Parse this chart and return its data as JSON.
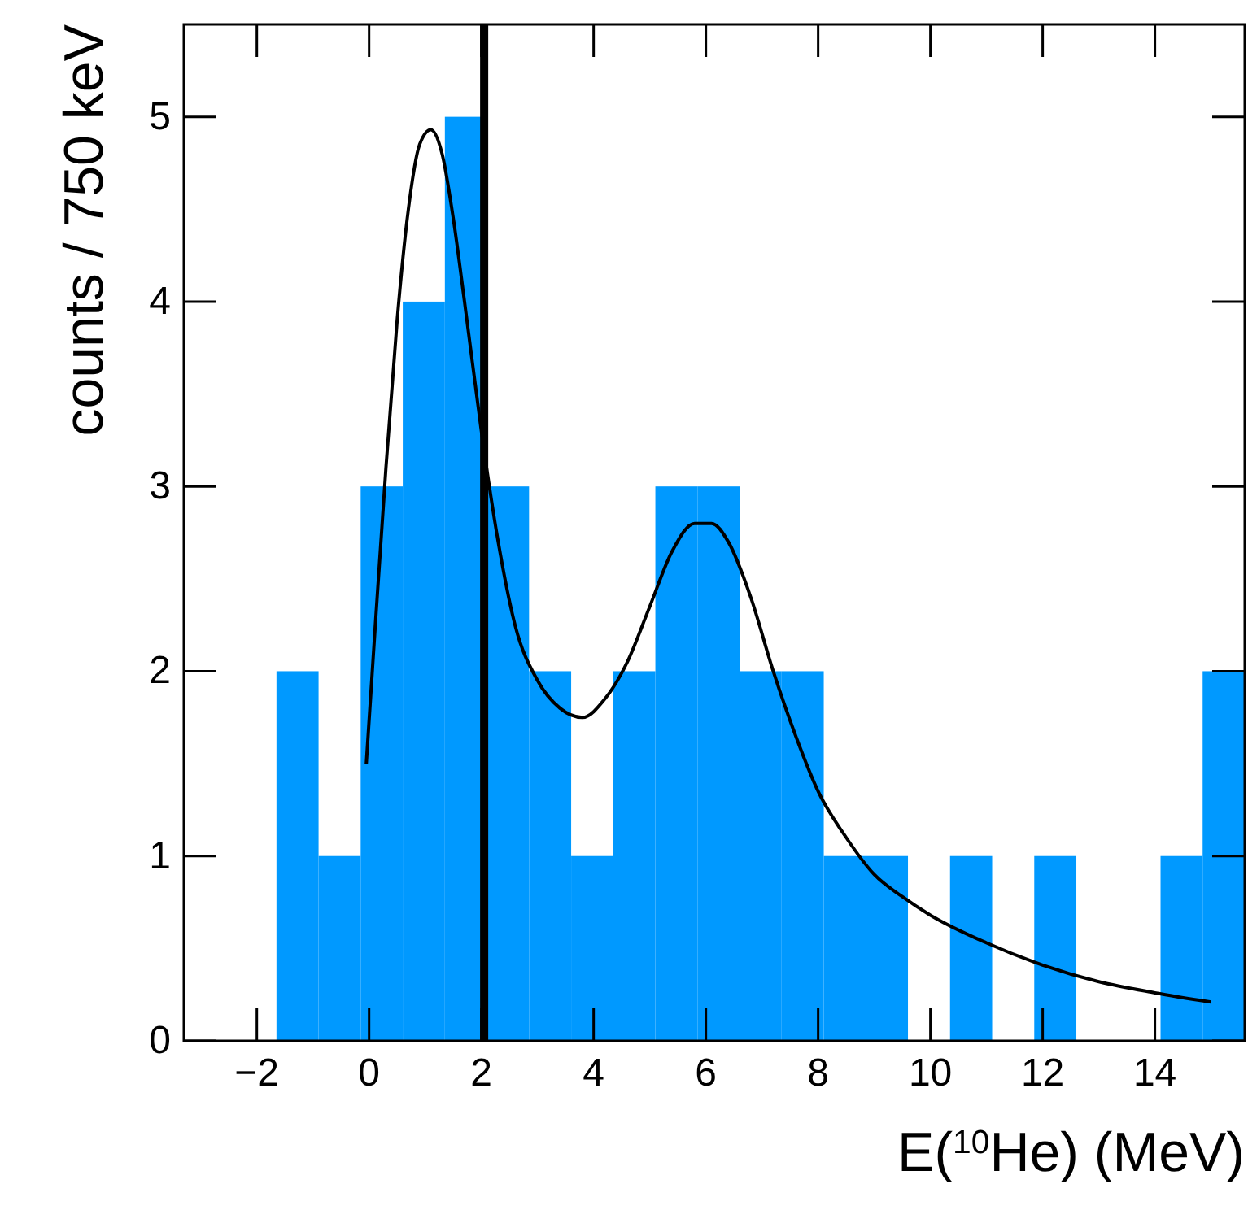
{
  "chart_data": {
    "type": "histogram",
    "xlabel": "E($^{10}$He) (MeV)",
    "ylabel": "counts / 750 keV",
    "bins": [
      -1.65,
      -0.9,
      -0.15,
      0.6,
      1.35,
      2.1,
      2.85,
      3.6,
      4.35,
      5.1,
      5.85,
      6.6,
      7.35,
      8.1,
      8.85,
      9.6,
      10.35,
      11.1,
      11.85,
      12.6,
      13.35,
      14.1,
      14.85,
      15.6
    ],
    "values": [
      2,
      1,
      3,
      4,
      5,
      3,
      2,
      1,
      2,
      3,
      3,
      2,
      2,
      1,
      1,
      0,
      1,
      0,
      1,
      0,
      0,
      1,
      2
    ],
    "color": "#0099ff",
    "series": [
      {
        "type": "line",
        "color": "#000000",
        "x": [
          -0.05,
          0.1,
          0.3,
          0.5,
          0.7,
          0.9,
          1.1,
          1.3,
          1.5,
          1.7,
          2.0,
          2.3,
          2.6,
          3.0,
          3.4,
          3.8,
          4.2,
          4.6,
          5.0,
          5.4,
          5.8,
          6.1,
          6.4,
          6.8,
          7.2,
          7.6,
          8.0,
          8.5,
          9.0,
          9.5,
          10,
          11,
          12,
          13,
          14,
          15
        ],
        "values": [
          1.5,
          2.2,
          3.1,
          3.9,
          4.5,
          4.85,
          4.93,
          4.8,
          4.45,
          4.0,
          3.3,
          2.7,
          2.25,
          1.95,
          1.8,
          1.75,
          1.85,
          2.05,
          2.35,
          2.65,
          2.8,
          2.8,
          2.7,
          2.4,
          2.0,
          1.65,
          1.35,
          1.1,
          0.9,
          0.78,
          0.68,
          0.53,
          0.41,
          0.32,
          0.26,
          0.21
        ]
      }
    ],
    "ref_lines": [
      {
        "axis": "x",
        "value": 2.05,
        "color": "#000000"
      }
    ],
    "xlim": [
      -3.3,
      15.6
    ],
    "ylim": [
      0,
      5.5
    ],
    "xticks": [
      {
        "value": -2,
        "label": "−2"
      },
      0,
      2,
      4,
      6,
      8,
      10,
      12,
      14
    ],
    "yticks": [
      0,
      1,
      2,
      3,
      4,
      5
    ],
    "grid": false
  }
}
